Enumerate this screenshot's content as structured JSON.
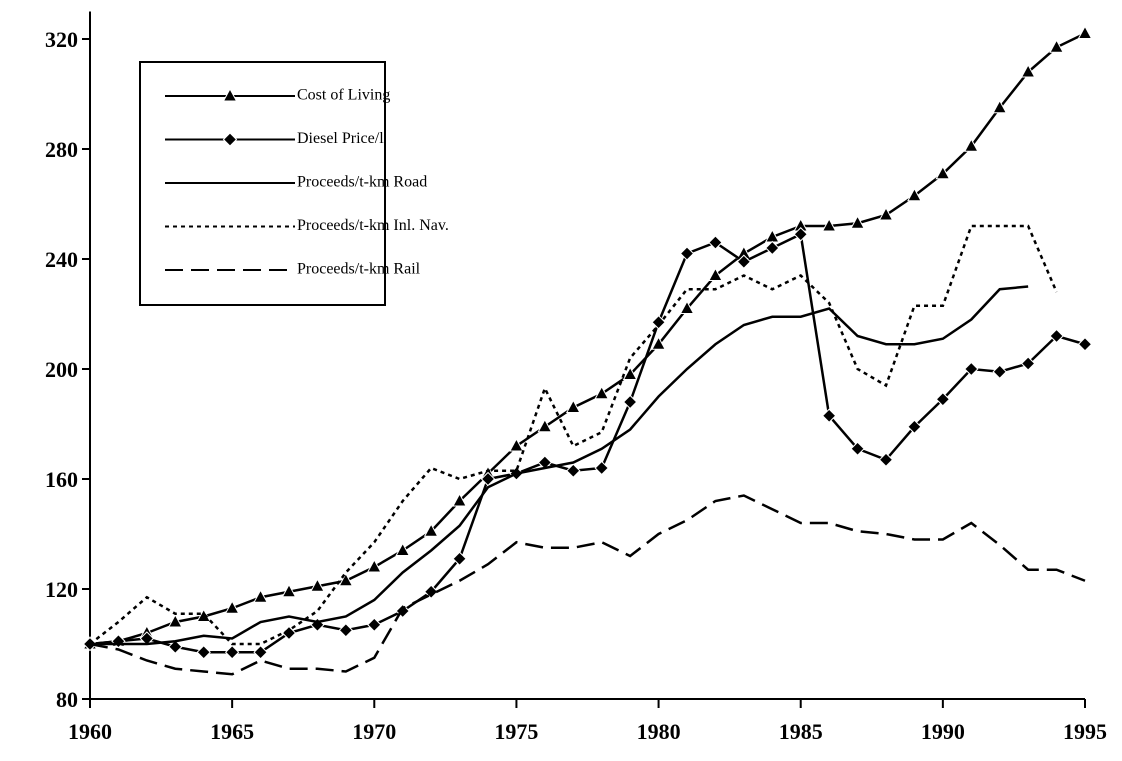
{
  "chart_data": {
    "type": "line",
    "x": [
      1960,
      1961,
      1962,
      1963,
      1964,
      1965,
      1966,
      1967,
      1968,
      1969,
      1970,
      1971,
      1972,
      1973,
      1974,
      1975,
      1976,
      1977,
      1978,
      1979,
      1980,
      1981,
      1982,
      1983,
      1984,
      1985,
      1986,
      1987,
      1988,
      1989,
      1990,
      1991,
      1992,
      1993,
      1994,
      1995
    ],
    "series": [
      {
        "name": "Cost of Living",
        "color": "#000000",
        "line_style": "solid",
        "marker": "triangle",
        "values": [
          100,
          101,
          104,
          108,
          110,
          113,
          117,
          119,
          121,
          123,
          128,
          134,
          141,
          152,
          162,
          172,
          179,
          186,
          191,
          198,
          209,
          222,
          234,
          242,
          248,
          252,
          252,
          253,
          256,
          263,
          271,
          281,
          295,
          308,
          317,
          322
        ]
      },
      {
        "name": "Diesel Price/l",
        "color": "#000000",
        "line_style": "solid",
        "marker": "diamond",
        "values": [
          100,
          101,
          102,
          99,
          97,
          97,
          97,
          104,
          107,
          105,
          107,
          112,
          119,
          131,
          160,
          162,
          166,
          163,
          164,
          188,
          217,
          242,
          246,
          239,
          244,
          249,
          183,
          171,
          167,
          179,
          189,
          200,
          199,
          202,
          212,
          209
        ]
      },
      {
        "name": "Proceeds/t-km Road",
        "color": "#000000",
        "line_style": "solid",
        "values": [
          100,
          100,
          100,
          101,
          103,
          102,
          108,
          110,
          108,
          110,
          116,
          126,
          134,
          143,
          157,
          162,
          164,
          166,
          171,
          178,
          190,
          200,
          209,
          216,
          219,
          219,
          222,
          212,
          209,
          209,
          211,
          218,
          229,
          230,
          null,
          null
        ]
      },
      {
        "name": "Proceeds/t-km Inl. Nav.",
        "color": "#000000",
        "line_style": "dotted",
        "values": [
          100,
          108,
          117,
          111,
          111,
          100,
          100,
          105,
          112,
          126,
          137,
          152,
          164,
          160,
          163,
          163,
          193,
          172,
          177,
          204,
          216,
          229,
          229,
          234,
          229,
          234,
          224,
          200,
          194,
          223,
          223,
          252,
          252,
          252,
          228,
          null
        ]
      },
      {
        "name": "Proceeds/t-km Rail",
        "color": "#000000",
        "line_style": "dashed",
        "values": [
          100,
          98,
          94,
          91,
          90,
          89,
          94,
          91,
          91,
          90,
          95,
          113,
          118,
          123,
          129,
          137,
          135,
          135,
          137,
          132,
          140,
          145,
          152,
          154,
          149,
          144,
          144,
          141,
          140,
          138,
          138,
          144,
          136,
          127,
          127,
          123
        ]
      }
    ],
    "xlim": [
      1960,
      1995
    ],
    "xticks": [
      1960,
      1965,
      1970,
      1975,
      1980,
      1985,
      1990,
      1995
    ],
    "ylim": [
      80,
      330
    ],
    "yticks": [
      80,
      120,
      160,
      200,
      240,
      280,
      320
    ],
    "legend": "upper left"
  }
}
